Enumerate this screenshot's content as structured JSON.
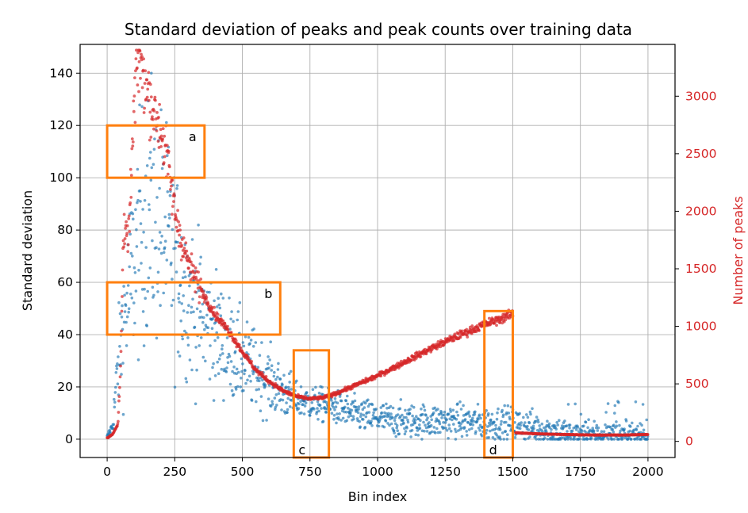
{
  "chart_data": {
    "type": "scatter",
    "title": "Standard deviation of peaks and peak counts over training data",
    "xlabel": "Bin index",
    "ylabel": "Standard deviation",
    "y2label": "Number of peaks",
    "xlim": [
      -100,
      2100
    ],
    "ylim": [
      -7,
      151
    ],
    "y2lim": [
      -140,
      3450
    ],
    "x_ticks": [
      0,
      250,
      500,
      750,
      1000,
      1250,
      1500,
      1750,
      2000
    ],
    "y_ticks": [
      0,
      20,
      40,
      60,
      80,
      100,
      120,
      140
    ],
    "y2_ticks": [
      0,
      500,
      1000,
      1500,
      2000,
      2500,
      3000
    ],
    "grid": true,
    "colors": {
      "std": "#1f77b4",
      "peaks": "#d62728",
      "boxes": "#ff7f0e"
    },
    "series": [
      {
        "axis": "left",
        "x": [
          0,
          20,
          40,
          60,
          80,
          100,
          120,
          140,
          160,
          180,
          200,
          225,
          250,
          275,
          300,
          325,
          350,
          375,
          400,
          450,
          500,
          550,
          600,
          650,
          700,
          750,
          800,
          850,
          900,
          1000,
          1100,
          1200,
          1300,
          1400,
          1500,
          1550,
          1600,
          1650,
          1700,
          1750,
          1800,
          1900,
          2000
        ],
        "values": [
          1,
          5,
          28,
          45,
          55,
          68,
          78,
          85,
          88,
          85,
          82,
          75,
          68,
          60,
          55,
          50,
          47,
          44,
          41,
          35,
          30,
          26,
          22,
          18,
          15,
          14,
          13,
          12,
          10,
          8,
          7,
          7,
          7,
          6,
          6,
          5,
          4,
          3,
          2,
          2,
          2,
          2,
          2
        ]
      },
      {
        "axis": "right",
        "x": [
          0,
          20,
          40,
          50,
          60,
          80,
          100,
          110,
          120,
          130,
          150,
          175,
          200,
          225,
          250,
          275,
          300,
          325,
          350,
          375,
          400,
          450,
          500,
          550,
          600,
          650,
          700,
          750,
          800,
          850,
          900,
          1000,
          1100,
          1200,
          1300,
          1400,
          1450,
          1500,
          1510,
          1550,
          1600,
          1700,
          1800,
          1900,
          2000
        ],
        "values": [
          30,
          60,
          150,
          700,
          1750,
          1800,
          2900,
          3250,
          3350,
          3200,
          3050,
          2850,
          2700,
          2400,
          2000,
          1750,
          1550,
          1420,
          1300,
          1200,
          1100,
          960,
          780,
          620,
          520,
          440,
          390,
          370,
          380,
          420,
          470,
          570,
          690,
          810,
          920,
          1020,
          1060,
          1110,
          75,
          70,
          65,
          60,
          55,
          55,
          60
        ]
      }
    ],
    "boxes": [
      {
        "label": "a",
        "x": [
          0,
          360
        ],
        "y": [
          100,
          120
        ]
      },
      {
        "label": "b",
        "x": [
          0,
          640
        ],
        "y": [
          40,
          60
        ]
      },
      {
        "label": "c",
        "x": [
          690,
          820
        ],
        "y": [
          -7,
          34
        ]
      },
      {
        "label": "d",
        "x": [
          1395,
          1500
        ],
        "y": [
          -7,
          49
        ]
      }
    ]
  }
}
